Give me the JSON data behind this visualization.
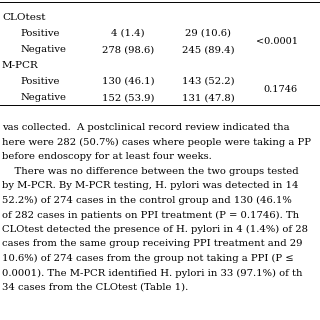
{
  "sections": [
    {
      "label": "CLOtest",
      "rows": [
        {
          "name": "Positive",
          "col1": "4 (1.4)",
          "col2": "29 (10.6)",
          "pvalue": "<0.0001"
        },
        {
          "name": "Negative",
          "col1": "278 (98.6)",
          "col2": "245 (89.4)",
          "pvalue": ""
        }
      ]
    },
    {
      "label": "M-PCR",
      "rows": [
        {
          "name": "Positive",
          "col1": "130 (46.1)",
          "col2": "143 (52.2)",
          "pvalue": "0.1746"
        },
        {
          "name": "Negative",
          "col1": "152 (53.9)",
          "col2": "131 (47.8)",
          "pvalue": ""
        }
      ]
    }
  ],
  "paragraph_lines": [
    "vas collected.  A postclinical record review indicated tha",
    "here were 282 (50.7%) cases where people were taking a PP",
    "before endoscopy for at least four weeks.",
    "    There was no difference between the two groups tested",
    "by M-PCR. By M-PCR testing, H. pylori was detected in 14",
    "52.2%) of 274 cases in the control group and 130 (46.1%",
    "of 282 cases in patients on PPI treatment (P = 0.1746). Th",
    "CLOtest detected the presence of H. pylori in 4 (1.4%) of 28",
    "cases from the same group receiving PPI treatment and 29",
    "10.6%) of 274 cases from the group not taking a PPI (P ≤",
    "0.0001). The M-PCR identified H. pylori in 33 (97.1%) of th",
    "34 cases from the CLOtest (Table 1)."
  ],
  "bg_color": "#ffffff",
  "text_color": "#000000",
  "line_color": "#000000"
}
